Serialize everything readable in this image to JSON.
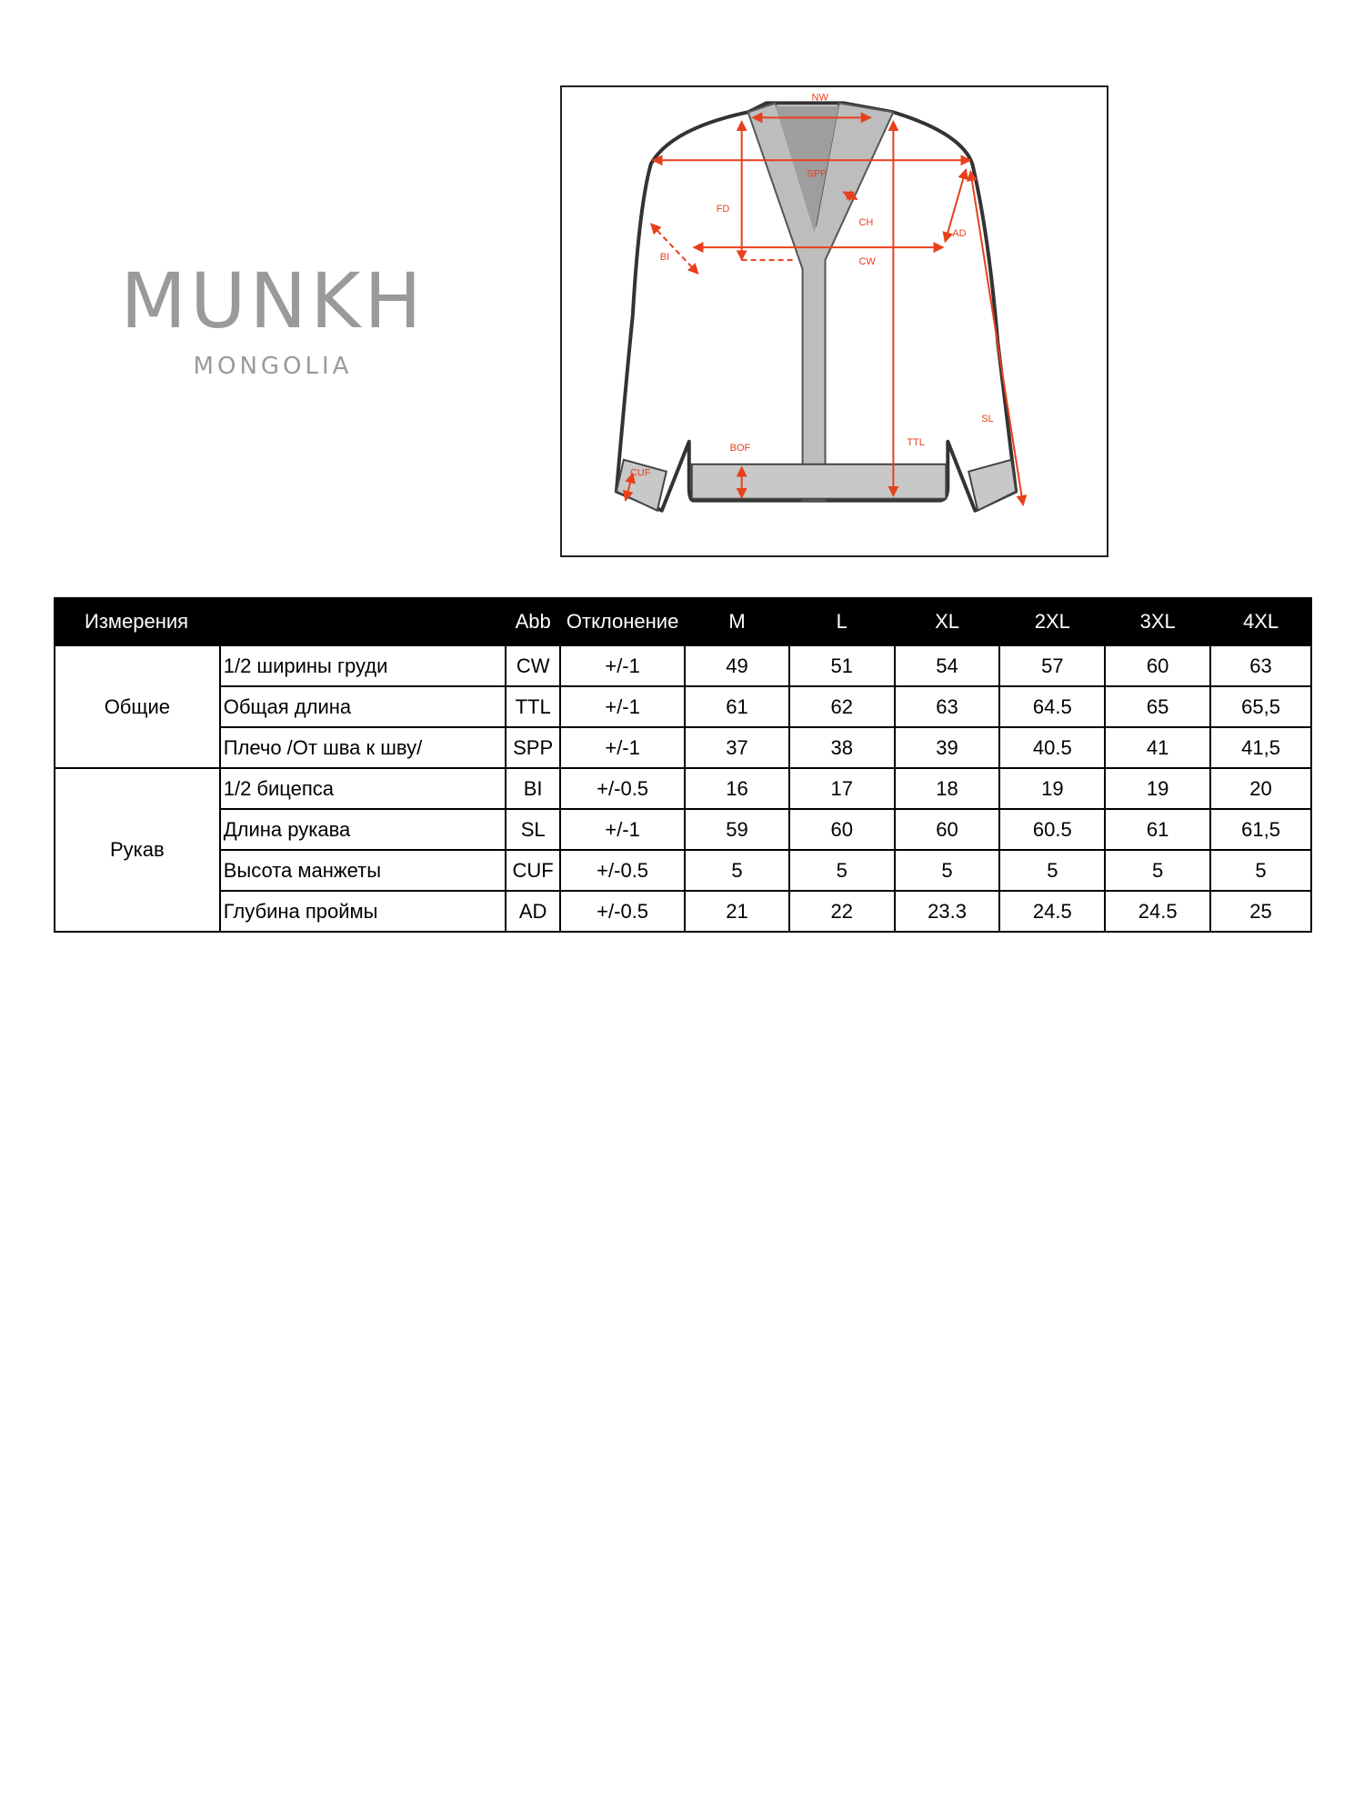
{
  "logo": {
    "brand": "MUNKH",
    "sub": "MONGOLIA"
  },
  "diagram_labels": {
    "nw": "NW",
    "spp": "SPP",
    "fd": "FD",
    "ch": "CH",
    "ad": "AD",
    "bi": "BI",
    "cw": "CW",
    "sl": "SL",
    "ttl": "TTL",
    "bof": "BOF",
    "cuf": "CUF"
  },
  "colors": {
    "measure": "#e8401c",
    "header_bg": "#000000",
    "logo": "#9a9a9a"
  },
  "table": {
    "headers": [
      "Измерения",
      "Abb",
      "Отклонение",
      "M",
      "L",
      "XL",
      "2XL",
      "3XL",
      "4XL"
    ],
    "groups": [
      {
        "name": "Общие",
        "rows": [
          {
            "name": "1/2 ширины груди",
            "abb": "CW",
            "tol": "+/-1",
            "values": [
              "49",
              "51",
              "54",
              "57",
              "60",
              "63"
            ]
          },
          {
            "name": "Общая длина",
            "abb": "TTL",
            "tol": "+/-1",
            "values": [
              "61",
              "62",
              "63",
              "64.5",
              "65",
              "65,5"
            ]
          },
          {
            "name": "Плечо /От шва к шву/",
            "abb": "SPP",
            "tol": "+/-1",
            "values": [
              "37",
              "38",
              "39",
              "40.5",
              "41",
              "41,5"
            ]
          }
        ]
      },
      {
        "name": "Рукав",
        "rows": [
          {
            "name": "1/2 бицепса",
            "abb": "BI",
            "tol": "+/-0.5",
            "values": [
              "16",
              "17",
              "18",
              "19",
              "19",
              "20"
            ]
          },
          {
            "name": "Длина рукава",
            "abb": "SL",
            "tol": "+/-1",
            "values": [
              "59",
              "60",
              "60",
              "60.5",
              "61",
              "61,5"
            ]
          },
          {
            "name": "Высота манжеты",
            "abb": "CUF",
            "tol": "+/-0.5",
            "values": [
              "5",
              "5",
              "5",
              "5",
              "5",
              "5"
            ]
          },
          {
            "name": "Глубина проймы",
            "abb": "AD",
            "tol": "+/-0.5",
            "values": [
              "21",
              "22",
              "23.3",
              "24.5",
              "24.5",
              "25"
            ]
          }
        ]
      }
    ]
  }
}
